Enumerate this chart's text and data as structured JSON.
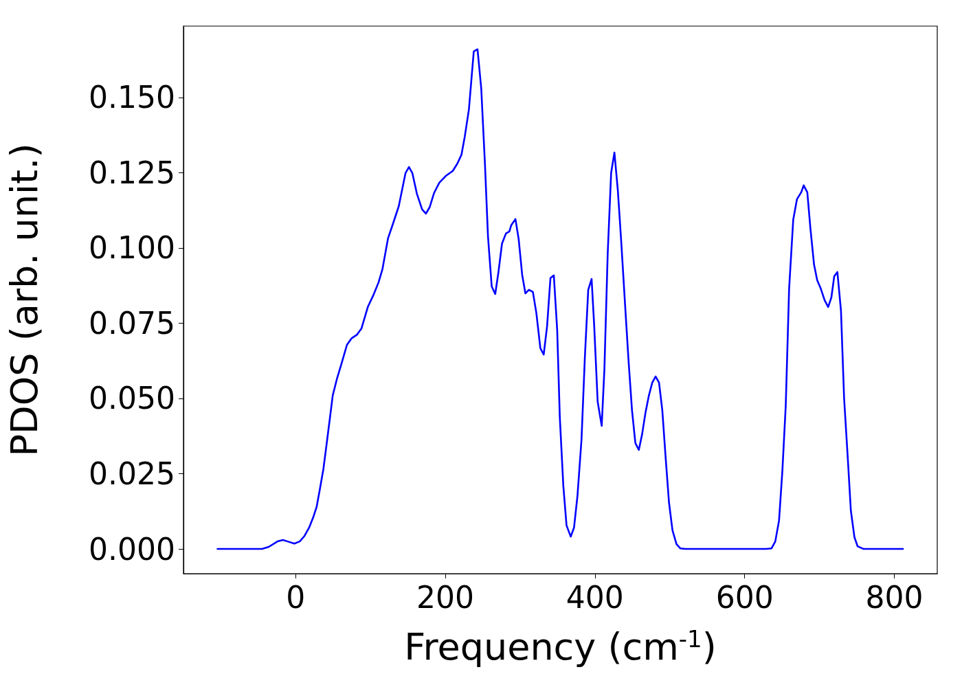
{
  "chart_data": {
    "type": "line",
    "xlabel": "Frequency (cm$^{-1}$)",
    "ylabel": "PDOS (arb. unit.)",
    "xlim": [
      -150,
      857.5
    ],
    "ylim": [
      -0.0082,
      0.1737
    ],
    "xticks": [
      0,
      200,
      400,
      600,
      800
    ],
    "yticks": [
      {
        "value": 0,
        "label": "0.000"
      },
      {
        "value": 0.025,
        "label": "0.025"
      },
      {
        "value": 0.05,
        "label": "0.050"
      },
      {
        "value": 0.075,
        "label": "0.075"
      },
      {
        "value": 0.1,
        "label": "0.100"
      },
      {
        "value": 0.125,
        "label": "0.125"
      },
      {
        "value": 0.15,
        "label": "0.150"
      }
    ],
    "marker": "none",
    "line_style": "solid",
    "x": [
      -104.5,
      -45,
      -36,
      -24.3,
      -17,
      -10.8,
      -1.8,
      5.4,
      11.7,
      18,
      23.4,
      28,
      32.4,
      37,
      41.4,
      46,
      49.5,
      55,
      61,
      68.5,
      74.8,
      82,
      88,
      96.4,
      103.6,
      110.8,
      116,
      123.4,
      129.7,
      137.8,
      146.8,
      151.4,
      155.9,
      162,
      169,
      174,
      179,
      185,
      192,
      201,
      210,
      216,
      221.6,
      226,
      231.5,
      238,
      243,
      248,
      253,
      257,
      262,
      266.7,
      271,
      275.7,
      281,
      285.6,
      288,
      293.7,
      298,
      302.7,
      307,
      311.7,
      317,
      321.6,
      327,
      331.5,
      336,
      340.5,
      345,
      349.5,
      353,
      357.7,
      362,
      367.6,
      372,
      376.6,
      382,
      386.5,
      391,
      395.5,
      399,
      403.6,
      409,
      412.6,
      417,
      421.6,
      426,
      430.6,
      435,
      440.5,
      445,
      449.5,
      454,
      458.6,
      463,
      467.6,
      472,
      476.6,
      481,
      485.6,
      490,
      494.6,
      499,
      503.6,
      509,
      514,
      520.7,
      628.8,
      636,
      641,
      646,
      650.5,
      655,
      659.5,
      665,
      670,
      675.7,
      679,
      683.8,
      688,
      692.8,
      697,
      701.8,
      707,
      711.7,
      716,
      719.8,
      724,
      728.8,
      733,
      737.8,
      742,
      746.8,
      751,
      759,
      811.7
    ],
    "series": [
      {
        "color": "#0000ff",
        "values": [
          0,
          0,
          0.0007,
          0.0025,
          0.003,
          0.0025,
          0.0018,
          0.0025,
          0.0043,
          0.0071,
          0.0105,
          0.014,
          0.02,
          0.0265,
          0.035,
          0.044,
          0.051,
          0.0564,
          0.0614,
          0.0678,
          0.07,
          0.0712,
          0.0733,
          0.0804,
          0.0842,
          0.0886,
          0.093,
          0.1032,
          0.1078,
          0.1139,
          0.1249,
          0.1269,
          0.1249,
          0.118,
          0.1128,
          0.1114,
          0.1135,
          0.1183,
          0.1217,
          0.124,
          0.1256,
          0.128,
          0.131,
          0.137,
          0.146,
          0.1653,
          0.166,
          0.153,
          0.1276,
          0.1039,
          0.0872,
          0.0847,
          0.092,
          0.1014,
          0.1048,
          0.1055,
          0.1075,
          0.1096,
          0.103,
          0.0911,
          0.0849,
          0.0861,
          0.0854,
          0.0785,
          0.0667,
          0.0646,
          0.074,
          0.09,
          0.0909,
          0.0728,
          0.0438,
          0.021,
          0.0078,
          0.0041,
          0.0071,
          0.0176,
          0.0363,
          0.0637,
          0.0861,
          0.0897,
          0.074,
          0.0489,
          0.0409,
          0.0596,
          0.098,
          0.1249,
          0.1317,
          0.119,
          0.1025,
          0.0801,
          0.0621,
          0.0461,
          0.0352,
          0.0329,
          0.0381,
          0.0454,
          0.0509,
          0.0553,
          0.0573,
          0.0553,
          0.0461,
          0.0299,
          0.0153,
          0.0062,
          0.0016,
          0.0002,
          0,
          0,
          0.0002,
          0.0025,
          0.0094,
          0.026,
          0.0477,
          0.0865,
          0.1094,
          0.1162,
          0.1185,
          0.1208,
          0.1185,
          0.1064,
          0.0945,
          0.0893,
          0.0865,
          0.0826,
          0.0804,
          0.0836,
          0.0906,
          0.092,
          0.0792,
          0.05,
          0.0306,
          0.0128,
          0.0039,
          0.0009,
          0,
          0
        ]
      }
    ]
  }
}
